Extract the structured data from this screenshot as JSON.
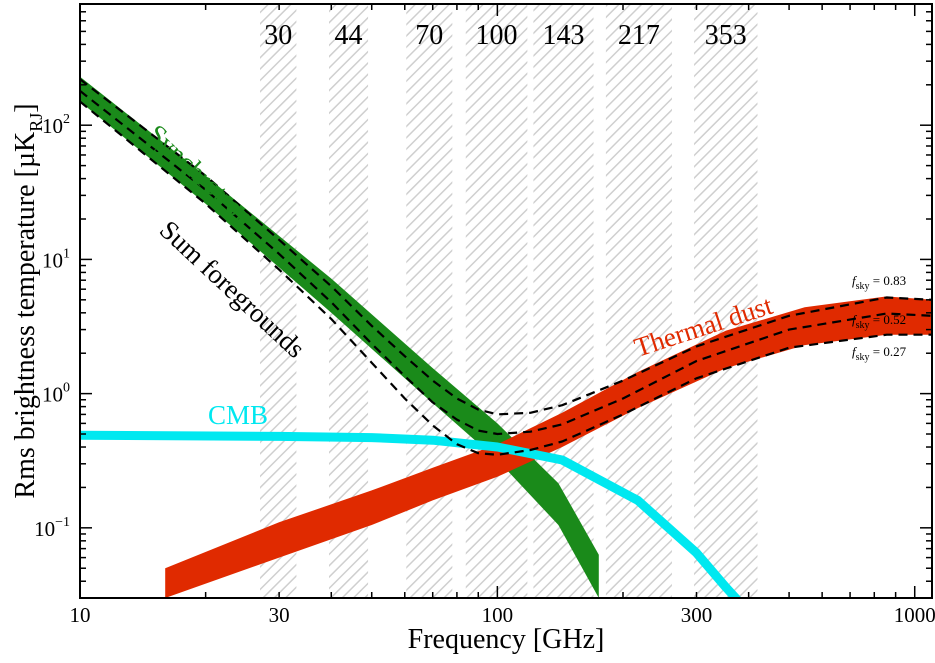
{
  "chart_data": {
    "type": "line",
    "title": "",
    "xlabel": "Frequency [GHz]",
    "ylabel_main": "Rms brightness temperature [µK",
    "ylabel_sub": "RJ",
    "ylabel_close": "]",
    "xscale": "log",
    "yscale": "log",
    "xlim": [
      10,
      1100
    ],
    "ylim": [
      0.03,
      800
    ],
    "x_ticks": [
      {
        "value": 10,
        "label": "10"
      },
      {
        "value": 30,
        "label": "30"
      },
      {
        "value": 100,
        "label": "100"
      },
      {
        "value": 300,
        "label": "300"
      },
      {
        "value": 1000,
        "label": "1000"
      }
    ],
    "y_ticks": [
      {
        "value": 0.1,
        "base": "10",
        "exp": "−1"
      },
      {
        "value": 1,
        "base": "10",
        "exp": "0"
      },
      {
        "value": 10,
        "base": "10",
        "exp": "1"
      },
      {
        "value": 100,
        "base": "10",
        "exp": "2"
      }
    ],
    "frequency_bands": [
      {
        "label": "30",
        "center": 28.4,
        "range": [
          27.0,
          33.0
        ]
      },
      {
        "label": "44",
        "center": 44.1,
        "range": [
          39.5,
          49.0
        ]
      },
      {
        "label": "70",
        "center": 70.4,
        "range": [
          60.5,
          78.0
        ]
      },
      {
        "label": "100",
        "center": 100,
        "range": [
          84.0,
          118.0
        ]
      },
      {
        "label": "143",
        "center": 143,
        "range": [
          122.0,
          170.0
        ]
      },
      {
        "label": "217",
        "center": 217,
        "range": [
          182.0,
          262.0
        ]
      },
      {
        "label": "353",
        "center": 353,
        "range": [
          296.0,
          420.0
        ]
      }
    ],
    "series": [
      {
        "name": "Synchrotron",
        "color": "#1a8a1a",
        "kind": "band",
        "x": [
          10,
          20,
          40,
          70,
          100,
          140,
          175
        ],
        "lower": [
          150,
          26,
          4.0,
          0.85,
          0.32,
          0.105,
          0.03
        ],
        "upper": [
          230,
          42,
          7.2,
          1.55,
          0.6,
          0.215,
          0.063
        ]
      },
      {
        "name": "Thermal dust",
        "color": "#e02a00",
        "kind": "band",
        "x": [
          16,
          30,
          50,
          70,
          100,
          143,
          217,
          353,
          545,
          857,
          1100
        ],
        "lower": [
          0.03,
          0.06,
          0.105,
          0.16,
          0.24,
          0.4,
          0.78,
          1.55,
          2.3,
          2.75,
          2.75
        ],
        "upper": [
          0.05,
          0.11,
          0.19,
          0.28,
          0.42,
          0.72,
          1.45,
          2.95,
          4.4,
          5.3,
          5.0
        ]
      },
      {
        "name": "CMB",
        "color": "#00e8f0",
        "kind": "line",
        "x": [
          10,
          30,
          50,
          70,
          100,
          143,
          217,
          300,
          353,
          380
        ],
        "y": [
          0.49,
          0.48,
          0.47,
          0.45,
          0.4,
          0.32,
          0.16,
          0.065,
          0.036,
          0.028
        ]
      },
      {
        "name": "Sum foregrounds f_sky = 0.83",
        "color": "#000000",
        "kind": "dashed",
        "x": [
          10,
          20,
          30,
          40,
          50,
          60,
          70,
          80,
          90,
          100,
          120,
          143,
          200,
          300,
          500,
          857,
          1100
        ],
        "y": [
          220,
          42,
          14,
          6.3,
          3.2,
          1.9,
          1.25,
          0.92,
          0.76,
          0.7,
          0.72,
          0.82,
          1.25,
          2.25,
          3.8,
          5.2,
          5.0
        ]
      },
      {
        "name": "Sum foregrounds f_sky = 0.52",
        "color": "#000000",
        "kind": "dashed",
        "x": [
          10,
          20,
          30,
          40,
          50,
          60,
          70,
          80,
          90,
          100,
          120,
          143,
          200,
          300,
          500,
          857,
          1100
        ],
        "y": [
          180,
          33,
          11,
          4.8,
          2.35,
          1.35,
          0.86,
          0.64,
          0.53,
          0.5,
          0.52,
          0.59,
          0.92,
          1.75,
          3.0,
          3.95,
          3.8
        ]
      },
      {
        "name": "Sum foregrounds f_sky = 0.27",
        "color": "#000000",
        "kind": "dashed",
        "x": [
          10,
          20,
          30,
          40,
          50,
          60,
          70,
          80,
          90,
          100,
          120,
          143,
          200,
          300,
          500,
          857,
          1100
        ],
        "y": [
          150,
          26,
          8.4,
          3.6,
          1.7,
          0.92,
          0.58,
          0.42,
          0.36,
          0.35,
          0.38,
          0.44,
          0.7,
          1.3,
          2.2,
          2.75,
          2.75
        ]
      }
    ],
    "annotations": [
      {
        "text": "Synchrotron",
        "color": "#1a8a1a"
      },
      {
        "text": "Sum foregrounds",
        "color": "#000000"
      },
      {
        "text": "Thermal dust",
        "color": "#e02a00"
      },
      {
        "text": "CMB",
        "color": "#00e8f0"
      }
    ],
    "fsky_labels": [
      {
        "symbol": "f",
        "sub": "sky",
        "value": " = 0.83"
      },
      {
        "symbol": "f",
        "sub": "sky",
        "value": " = 0.52"
      },
      {
        "symbol": "f",
        "sub": "sky",
        "value": " = 0.27"
      }
    ]
  }
}
